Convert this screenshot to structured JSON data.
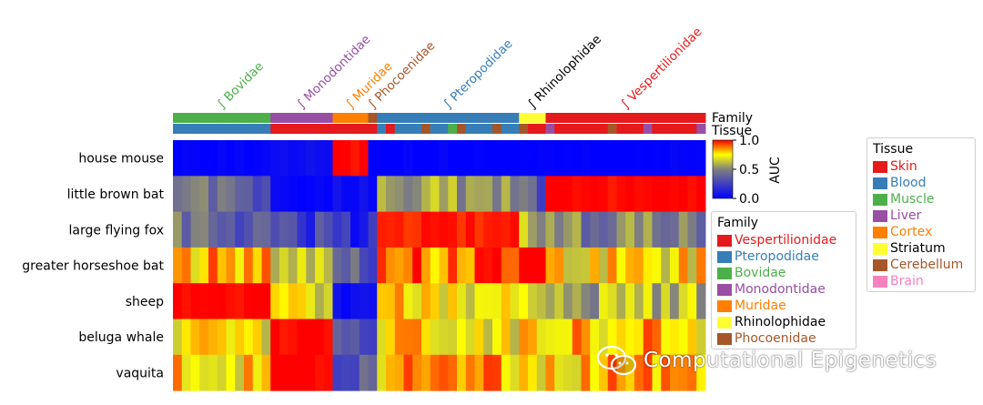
{
  "chart_data": {
    "type": "heatmap",
    "rows": [
      "house mouse",
      "little brown bat",
      "large flying fox",
      "greater horseshoe bat",
      "sheep",
      "beluga whale",
      "vaquita"
    ],
    "column_groups": [
      {
        "family": "Bovidae",
        "color": "#4daf4a",
        "count": 11
      },
      {
        "family": "Monodontidae",
        "color": "#984ea3",
        "count": 7
      },
      {
        "family": "Muridae",
        "color": "#ff7f00",
        "count": 4
      },
      {
        "family": "Phocoenidae",
        "color": "#a65628",
        "count": 1
      },
      {
        "family": "Pteropodidae",
        "color": "#377eb8",
        "count": 16
      },
      {
        "family": "Rhinolophidae",
        "color": "#ffff33",
        "count": 3
      },
      {
        "family": "Vespertilionidae",
        "color": "#e41a1c",
        "count": 18
      }
    ],
    "group_means": [
      [
        0.0,
        0.05,
        1.0,
        0.0,
        0.0,
        0.0,
        0.0
      ],
      [
        0.4,
        0.02,
        0.05,
        0.02,
        0.55,
        0.35,
        1.0
      ],
      [
        0.4,
        0.25,
        0.15,
        0.1,
        0.97,
        0.6,
        0.5
      ],
      [
        0.8,
        0.65,
        0.4,
        0.3,
        0.9,
        1.0,
        0.75
      ],
      [
        1.0,
        0.7,
        0.05,
        0.05,
        0.75,
        0.65,
        0.6
      ],
      [
        0.75,
        1.0,
        0.3,
        0.3,
        0.75,
        0.72,
        0.8
      ],
      [
        0.78,
        1.0,
        0.3,
        0.3,
        0.8,
        0.78,
        0.8
      ]
    ],
    "colorbar": {
      "label": "AUC",
      "ticks": [
        "1.0",
        "0.5",
        "0.0"
      ],
      "range": [
        0,
        1
      ],
      "colors": [
        "#0000ff",
        "#808080",
        "#ffff00",
        "#ff0000"
      ]
    },
    "annotation_rows": [
      "Family",
      "Tissue"
    ],
    "family_legend": {
      "title": "Family",
      "items": [
        {
          "label": "Vespertilionidae",
          "color": "#e41a1c"
        },
        {
          "label": "Pteropodidae",
          "color": "#377eb8"
        },
        {
          "label": "Bovidae",
          "color": "#4daf4a"
        },
        {
          "label": "Monodontidae",
          "color": "#984ea3"
        },
        {
          "label": "Muridae",
          "color": "#ff7f00"
        },
        {
          "label": "Rhinolophidae",
          "color": "#ffff33",
          "text_color": "#000000"
        },
        {
          "label": "Phocoenidae",
          "color": "#a65628"
        }
      ]
    },
    "tissue_legend": {
      "title": "Tissue",
      "items": [
        {
          "label": "Skin",
          "color": "#e41a1c"
        },
        {
          "label": "Blood",
          "color": "#377eb8"
        },
        {
          "label": "Muscle",
          "color": "#4daf4a"
        },
        {
          "label": "Liver",
          "color": "#984ea3"
        },
        {
          "label": "Cortex",
          "color": "#ff7f00"
        },
        {
          "label": "Striatum",
          "color": "#ffff33",
          "text_color": "#000000"
        },
        {
          "label": "Cerebellum",
          "color": "#a65628"
        },
        {
          "label": "Brain",
          "color": "#f781bf"
        }
      ]
    }
  },
  "watermark": {
    "text": "Computational Epigenetics",
    "icon": "wechat-icon"
  }
}
